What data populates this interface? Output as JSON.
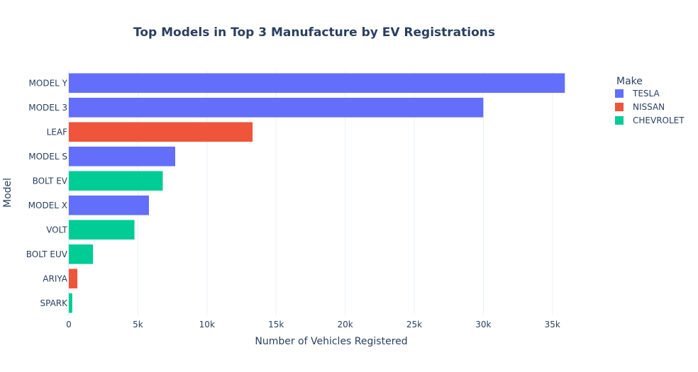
{
  "chart_data": {
    "type": "bar",
    "orientation": "horizontal",
    "title": "Top Models in Top 3 Manufacture by EV Registrations",
    "xlabel": "Number of Vehicles Registered",
    "ylabel": "Model",
    "xlim": [
      0,
      36500
    ],
    "x_ticks": [
      {
        "value": 0,
        "label": "0"
      },
      {
        "value": 5000,
        "label": "5k"
      },
      {
        "value": 10000,
        "label": "10k"
      },
      {
        "value": 15000,
        "label": "15k"
      },
      {
        "value": 20000,
        "label": "20k"
      },
      {
        "value": 25000,
        "label": "25k"
      },
      {
        "value": 30000,
        "label": "30k"
      },
      {
        "value": 35000,
        "label": "35k"
      }
    ],
    "grid": true,
    "legend": {
      "title": "Make",
      "placement": "top-right",
      "entries": [
        {
          "name": "TESLA",
          "color": "#636efa"
        },
        {
          "name": "NISSAN",
          "color": "#ef553b"
        },
        {
          "name": "CHEVROLET",
          "color": "#00cc96"
        }
      ]
    },
    "bars": [
      {
        "model": "MODEL Y",
        "make": "TESLA",
        "value": 35900
      },
      {
        "model": "MODEL 3",
        "make": "TESLA",
        "value": 30000
      },
      {
        "model": "LEAF",
        "make": "NISSAN",
        "value": 13300
      },
      {
        "model": "MODEL S",
        "make": "TESLA",
        "value": 7700
      },
      {
        "model": "BOLT EV",
        "make": "CHEVROLET",
        "value": 6800
      },
      {
        "model": "MODEL X",
        "make": "TESLA",
        "value": 5800
      },
      {
        "model": "VOLT",
        "make": "CHEVROLET",
        "value": 4750
      },
      {
        "model": "BOLT EUV",
        "make": "CHEVROLET",
        "value": 1750
      },
      {
        "model": "ARIYA",
        "make": "NISSAN",
        "value": 620
      },
      {
        "model": "SPARK",
        "make": "CHEVROLET",
        "value": 250
      }
    ]
  }
}
